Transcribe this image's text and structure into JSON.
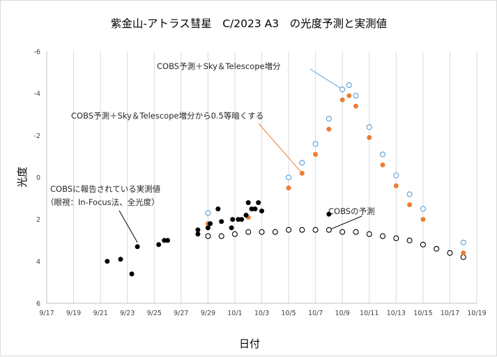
{
  "chart_data": {
    "type": "scatter",
    "title": "紫金山-アトラス彗星　C/2023 A3　の光度予測と実測値",
    "xlabel": "日付",
    "ylabel": "光度",
    "x_tick_labels": [
      "9/17",
      "9/19",
      "9/21",
      "9/23",
      "9/25",
      "9/27",
      "9/29",
      "10/1",
      "10/3",
      "10/5",
      "10/7",
      "10/9",
      "10/11",
      "10/13",
      "10/15",
      "10/17",
      "10/19"
    ],
    "x_axis_start": "2024-09-17",
    "x_axis_end": "2024-10-19",
    "y_tick_labels": [
      "-6",
      "-4",
      "-2",
      "0",
      "2",
      "4",
      "6"
    ],
    "ylim": [
      6,
      -6
    ],
    "y_inverted": true,
    "grid": "vertical",
    "series": [
      {
        "name": "COBSに報告されている実測値（眼視：In-Focus法、全光度）",
        "marker": "filled-circle",
        "color": "#000000",
        "points": [
          [
            "2024-09-21 12:00",
            4.0
          ],
          [
            "2024-09-22 12:00",
            3.9
          ],
          [
            "2024-09-23 08:00",
            4.6
          ],
          [
            "2024-09-23 18:00",
            3.3
          ],
          [
            "2024-09-25 08:00",
            3.2
          ],
          [
            "2024-09-25 18:00",
            3.0
          ],
          [
            "2024-09-26 00:00",
            3.0
          ],
          [
            "2024-09-28 06:00",
            2.7
          ],
          [
            "2024-09-28 06:00",
            2.5
          ],
          [
            "2024-09-29 00:00",
            2.4
          ],
          [
            "2024-09-29 04:00",
            2.2
          ],
          [
            "2024-09-29 18:00",
            1.5
          ],
          [
            "2024-09-30 00:00",
            2.1
          ],
          [
            "2024-09-30 18:00",
            2.4
          ],
          [
            "2024-09-30 20:00",
            2.0
          ],
          [
            "2024-10-01 06:00",
            2.0
          ],
          [
            "2024-10-01 12:00",
            2.0
          ],
          [
            "2024-10-01 20:00",
            1.8
          ],
          [
            "2024-10-02 00:00",
            1.2
          ],
          [
            "2024-10-02 06:00",
            1.5
          ],
          [
            "2024-10-02 12:00",
            1.5
          ],
          [
            "2024-10-02 18:00",
            1.2
          ],
          [
            "2024-10-03 00:00",
            1.6
          ],
          [
            "2024-10-08 00:00",
            1.75
          ]
        ]
      },
      {
        "name": "COBSの予測",
        "marker": "open-circle",
        "color": "#000000",
        "points": [
          [
            "2024-09-29",
            2.8
          ],
          [
            "2024-09-30",
            2.8
          ],
          [
            "2024-10-01",
            2.7
          ],
          [
            "2024-10-02",
            2.6
          ],
          [
            "2024-10-03",
            2.6
          ],
          [
            "2024-10-04",
            2.6
          ],
          [
            "2024-10-05",
            2.5
          ],
          [
            "2024-10-06",
            2.5
          ],
          [
            "2024-10-07",
            2.5
          ],
          [
            "2024-10-08",
            2.5
          ],
          [
            "2024-10-09",
            2.6
          ],
          [
            "2024-10-10",
            2.6
          ],
          [
            "2024-10-11",
            2.7
          ],
          [
            "2024-10-12",
            2.8
          ],
          [
            "2024-10-13",
            2.9
          ],
          [
            "2024-10-14",
            3.0
          ],
          [
            "2024-10-15",
            3.2
          ],
          [
            "2024-10-16",
            3.4
          ],
          [
            "2024-10-17",
            3.6
          ],
          [
            "2024-10-18",
            3.8
          ]
        ]
      },
      {
        "name": "COBS予測＋Sky＆Telescope増分",
        "marker": "open-circle",
        "color": "#5b9bd5",
        "points": [
          [
            "2024-09-29",
            1.7
          ],
          [
            "2024-10-05",
            0.0
          ],
          [
            "2024-10-06",
            -0.7
          ],
          [
            "2024-10-07",
            -1.6
          ],
          [
            "2024-10-08",
            -2.8
          ],
          [
            "2024-10-09",
            -4.2
          ],
          [
            "2024-10-09 12:00",
            -4.4
          ],
          [
            "2024-10-10",
            -3.9
          ],
          [
            "2024-10-11",
            -2.4
          ],
          [
            "2024-10-12",
            -1.1
          ],
          [
            "2024-10-13",
            -0.1
          ],
          [
            "2024-10-14",
            0.8
          ],
          [
            "2024-10-15",
            1.5
          ],
          [
            "2024-10-18",
            3.1
          ]
        ]
      },
      {
        "name": "COBS予測＋Sky＆Telescope増分から0.5等暗くする",
        "marker": "filled-circle",
        "color": "#ed7d31",
        "points": [
          [
            "2024-09-29",
            2.2
          ],
          [
            "2024-10-02",
            1.9
          ],
          [
            "2024-10-05",
            0.5
          ],
          [
            "2024-10-06",
            -0.2
          ],
          [
            "2024-10-07",
            -1.1
          ],
          [
            "2024-10-08",
            -2.3
          ],
          [
            "2024-10-09",
            -3.7
          ],
          [
            "2024-10-09 12:00",
            -3.9
          ],
          [
            "2024-10-10",
            -3.4
          ],
          [
            "2024-10-11",
            -1.9
          ],
          [
            "2024-10-12",
            -0.6
          ],
          [
            "2024-10-13",
            0.4
          ],
          [
            "2024-10-14",
            1.3
          ],
          [
            "2024-10-15",
            2.0
          ],
          [
            "2024-10-18",
            3.6
          ]
        ]
      }
    ],
    "annotations": [
      {
        "text": "COBS予測＋Sky＆Telescope増分",
        "series": 2,
        "target": [
          "2024-10-09",
          -4.2
        ],
        "leader_color": "#5b9bd5"
      },
      {
        "text": "COBS予測＋Sky＆Telescope増分から0.5等暗くする",
        "series": 3,
        "target": [
          "2024-10-06",
          -0.2
        ],
        "leader_color": "#ed7d31"
      },
      {
        "text_lines": [
          "COBSに報告されている実測値",
          "（眼視：In-Focus法、全光度）"
        ],
        "series": 0,
        "target": [
          "2024-09-23 18:00",
          3.1
        ],
        "leader_color": "#000000"
      },
      {
        "text": "COBSの予測",
        "series": 1,
        "target": [
          "2024-10-08",
          2.5
        ],
        "leader_color": "#000000"
      }
    ]
  }
}
